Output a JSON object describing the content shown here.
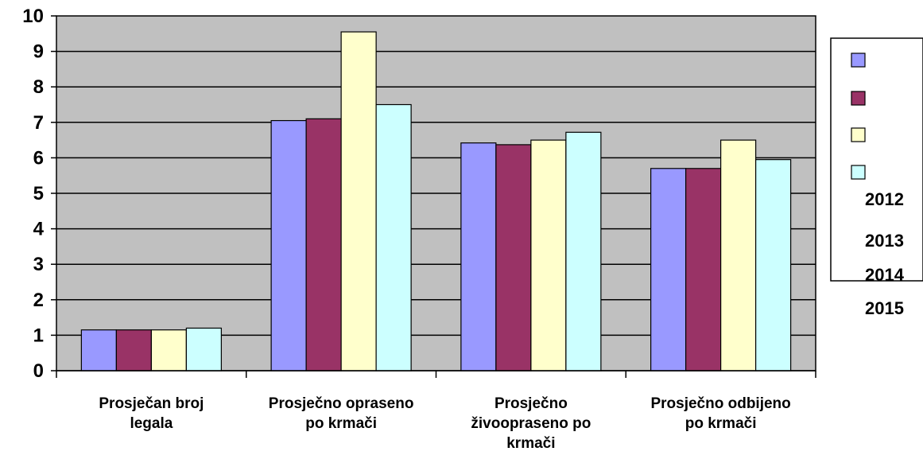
{
  "chart_data": {
    "type": "bar",
    "categories": [
      [
        "Prosječan broj",
        "legala"
      ],
      [
        "Prosječno opraseno",
        "po krmači"
      ],
      [
        "Prosječno",
        "živoopraseno po",
        "krmači"
      ],
      [
        "Prosječno odbijeno",
        "po krmači"
      ]
    ],
    "series": [
      {
        "name": "2012",
        "color": "#9999ff",
        "values": [
          1.15,
          7.05,
          6.42,
          5.7
        ]
      },
      {
        "name": "2013",
        "color": "#993366",
        "values": [
          1.15,
          7.1,
          6.37,
          5.7
        ]
      },
      {
        "name": "2014",
        "color": "#ffffcc",
        "values": [
          1.15,
          9.55,
          6.5,
          6.5
        ]
      },
      {
        "name": "2015",
        "color": "#ccffff",
        "values": [
          1.2,
          7.5,
          6.72,
          5.95
        ]
      }
    ],
    "ylim": [
      0,
      10
    ],
    "yticks": [
      "0",
      "1",
      "2",
      "3",
      "4",
      "5",
      "6",
      "7",
      "8",
      "9",
      "10"
    ],
    "grid": true,
    "plot_background": "#c0c0c0",
    "legend_position": "right"
  }
}
